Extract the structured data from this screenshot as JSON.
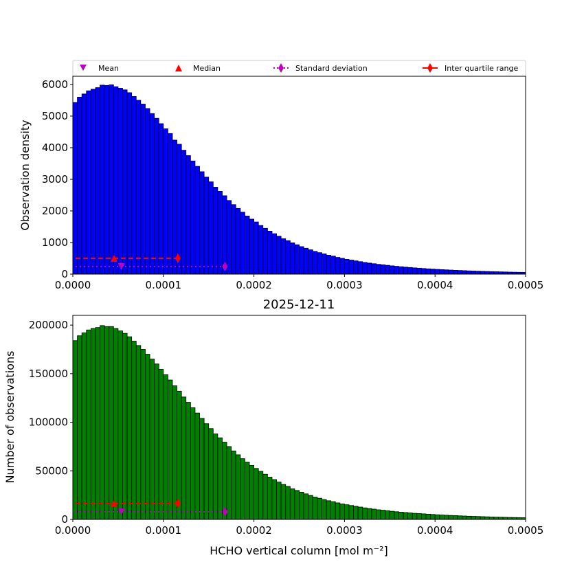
{
  "chart_data": [
    {
      "type": "bar",
      "title": "",
      "xlabel": "",
      "ylabel": "Observation density",
      "xlim": [
        0,
        0.0005
      ],
      "ylim": [
        0,
        6260
      ],
      "bin_width": 5e-06,
      "bar_color": "#0000ff",
      "xticks": [
        "0.0000",
        "0.0001",
        "0.0002",
        "0.0003",
        "0.0004",
        "0.0005"
      ],
      "yticks": [
        "0",
        "1000",
        "2000",
        "3000",
        "4000",
        "5000",
        "6000"
      ],
      "values": [
        5430,
        5600,
        5700,
        5800,
        5850,
        5900,
        5980,
        5970,
        5990,
        5930,
        5880,
        5830,
        5740,
        5620,
        5500,
        5380,
        5240,
        5080,
        4930,
        4760,
        4600,
        4450,
        4240,
        4110,
        3920,
        3750,
        3580,
        3410,
        3240,
        3070,
        2920,
        2750,
        2620,
        2480,
        2330,
        2200,
        2080,
        1960,
        1840,
        1740,
        1650,
        1540,
        1450,
        1360,
        1280,
        1200,
        1120,
        1060,
        990,
        930,
        870,
        820,
        770,
        720,
        680,
        640,
        600,
        570,
        530,
        500,
        470,
        445,
        420,
        395,
        370,
        350,
        330,
        310,
        295,
        280,
        262,
        248,
        235,
        222,
        210,
        198,
        188,
        178,
        168,
        160,
        151,
        143,
        136,
        129,
        122,
        116,
        110,
        104,
        99,
        94,
        89,
        85,
        80,
        76,
        72,
        69,
        65,
        62,
        59,
        56
      ],
      "stats": {
        "mean": 5.37e-05,
        "median": 4.55e-05,
        "iqr": [
          3e-06,
          0.000116
        ],
        "std_line": [
          3e-06,
          0.000168
        ],
        "iqr_level": 500,
        "std_level": 240
      },
      "legend": {
        "placement": "top",
        "entries": [
          "Mean",
          "Median",
          "Standard deviation",
          "Inter quartile range"
        ]
      }
    },
    {
      "type": "bar",
      "title": "2025-12-11",
      "xlabel": "HCHO vertical column [mol m⁻²]",
      "ylabel": "Number of observations",
      "xlim": [
        0,
        0.0005
      ],
      "ylim": [
        0,
        210000
      ],
      "bin_width": 5e-06,
      "bar_color": "#008000",
      "xticks": [
        "0.0000",
        "0.0001",
        "0.0002",
        "0.0003",
        "0.0004",
        "0.0005"
      ],
      "yticks": [
        "0",
        "50000",
        "100000",
        "150000",
        "200000"
      ],
      "values": [
        184000,
        189000,
        192000,
        195000,
        196500,
        197500,
        199500,
        198500,
        198500,
        196500,
        194000,
        191500,
        188000,
        183500,
        179000,
        175000,
        170000,
        165000,
        160000,
        154500,
        149000,
        143500,
        137500,
        132000,
        126000,
        120500,
        115000,
        109500,
        104000,
        98500,
        93500,
        88000,
        84000,
        79500,
        75000,
        70500,
        66500,
        62500,
        59000,
        55500,
        52500,
        49500,
        46500,
        43500,
        41000,
        38500,
        36000,
        34000,
        31500,
        29800,
        28000,
        26300,
        24700,
        23100,
        21800,
        20500,
        19200,
        18300,
        17000,
        16000,
        15100,
        14300,
        13500,
        12700,
        11900,
        11200,
        10600,
        9900,
        9500,
        9000,
        8400,
        7900,
        7500,
        7100,
        6700,
        6300,
        6000,
        5700,
        5400,
        5100,
        4800,
        4600,
        4350,
        4100,
        3900,
        3700,
        3500,
        3300,
        3150,
        3000,
        2850,
        2700,
        2550,
        2400,
        2300,
        2200,
        2080,
        1980,
        1890,
        1790
      ],
      "stats": {
        "mean": 5.37e-05,
        "median": 4.55e-05,
        "iqr": [
          3e-06,
          0.000116
        ],
        "std_line": [
          3e-06,
          0.000168
        ],
        "iqr_level": 16300,
        "std_level": 7800
      }
    }
  ],
  "colors": {
    "mean": "#bf00bf",
    "median": "#ff0000",
    "std": "#bf00bf",
    "iqr": "#ff0000"
  }
}
